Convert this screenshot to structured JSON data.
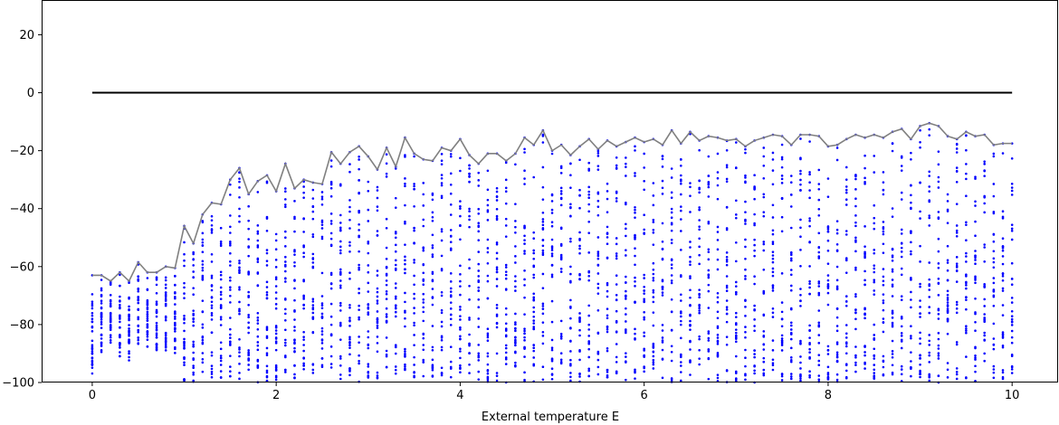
{
  "chart_data": {
    "type": "scatter",
    "title": "",
    "xlabel": "External temperature E",
    "ylabel": "",
    "xlim": [
      -0.55,
      10.5
    ],
    "ylim": [
      -100,
      32
    ],
    "xticks": [
      0,
      2,
      4,
      6,
      8,
      10
    ],
    "yticks": [
      -100,
      -80,
      -60,
      -40,
      -20,
      0,
      20
    ],
    "grid": false,
    "colors": {
      "points": "#0000ff",
      "max_line": "#808080",
      "zero_line": "#000000"
    },
    "zero_line": {
      "x": [
        0,
        10
      ],
      "y": 0
    },
    "max_line": {
      "x": [
        0.0,
        0.1,
        0.2,
        0.3,
        0.4,
        0.5,
        0.6,
        0.7,
        0.8,
        0.9,
        1.0,
        1.1,
        1.2,
        1.3,
        1.4,
        1.5,
        1.6,
        1.7,
        1.8,
        1.9,
        2.0,
        2.1,
        2.2,
        2.3,
        2.4,
        2.5,
        2.6,
        2.7,
        2.8,
        2.9,
        3.0,
        3.1,
        3.2,
        3.3,
        3.4,
        3.5,
        3.6,
        3.7,
        3.8,
        3.9,
        4.0,
        4.1,
        4.2,
        4.3,
        4.4,
        4.5,
        4.6,
        4.7,
        4.8,
        4.9,
        5.0,
        5.1,
        5.2,
        5.3,
        5.4,
        5.5,
        5.6,
        5.7,
        5.8,
        5.9,
        6.0,
        6.1,
        6.2,
        6.3,
        6.4,
        6.5,
        6.6,
        6.7,
        6.8,
        6.9,
        7.0,
        7.1,
        7.2,
        7.3,
        7.4,
        7.5,
        7.6,
        7.7,
        7.8,
        7.9,
        8.0,
        8.1,
        8.2,
        8.3,
        8.4,
        8.5,
        8.6,
        8.7,
        8.8,
        8.9,
        9.0,
        9.1,
        9.2,
        9.3,
        9.4,
        9.5,
        9.6,
        9.7,
        9.8,
        9.9,
        10.0
      ],
      "y": [
        -63,
        -63,
        -65,
        -62,
        -65,
        -58.5,
        -62,
        -62,
        -60,
        -60.5,
        -46,
        -52,
        -42,
        -38,
        -38.5,
        -30,
        -26,
        -35,
        -30.5,
        -28.5,
        -34,
        -24.5,
        -33,
        -30,
        -31,
        -31.5,
        -20.5,
        -24.5,
        -20.5,
        -18.5,
        -22,
        -26.5,
        -19,
        -25.5,
        -15.5,
        -21,
        -23,
        -23.5,
        -19,
        -20,
        -16,
        -21.5,
        -24.5,
        -21,
        -21,
        -23.5,
        -21,
        -15.5,
        -18,
        -13,
        -20,
        -18,
        -21.5,
        -18.5,
        -16,
        -19.5,
        -16.5,
        -18.5,
        -17,
        -15.5,
        -17,
        -16,
        -18,
        -13,
        -17.5,
        -13.5,
        -16.5,
        -15,
        -15.5,
        -16.5,
        -16,
        -18.5,
        -16.5,
        -15.5,
        -14.5,
        -15,
        -18,
        -14.5,
        -14.5,
        -15,
        -18.5,
        -18,
        -16,
        -14.5,
        -15.5,
        -14.5,
        -15.5,
        -13.5,
        -12.5,
        -16,
        -11.5,
        -10.5,
        -11.5,
        -15,
        -16,
        -13.5,
        -15,
        -14.5,
        -18,
        -17.5,
        -17.5
      ]
    },
    "scatter": {
      "n_samples_per_x": 30,
      "xs": [
        0.0,
        0.1,
        0.2,
        0.3,
        0.4,
        0.5,
        0.6,
        0.7,
        0.8,
        0.9,
        1.0,
        1.1,
        1.2,
        1.3,
        1.4,
        1.5,
        1.6,
        1.7,
        1.8,
        1.9,
        2.0,
        2.1,
        2.2,
        2.3,
        2.4,
        2.5,
        2.6,
        2.7,
        2.8,
        2.9,
        3.0,
        3.1,
        3.2,
        3.3,
        3.4,
        3.5,
        3.6,
        3.7,
        3.8,
        3.9,
        4.0,
        4.1,
        4.2,
        4.3,
        4.4,
        4.5,
        4.6,
        4.7,
        4.8,
        4.9,
        5.0,
        5.1,
        5.2,
        5.3,
        5.4,
        5.5,
        5.6,
        5.7,
        5.8,
        5.9,
        6.0,
        6.1,
        6.2,
        6.3,
        6.4,
        6.5,
        6.6,
        6.7,
        6.8,
        6.9,
        7.0,
        7.1,
        7.2,
        7.3,
        7.4,
        7.5,
        7.6,
        7.7,
        7.8,
        7.9,
        8.0,
        8.1,
        8.2,
        8.3,
        8.4,
        8.5,
        8.6,
        8.7,
        8.8,
        8.9,
        9.0,
        9.1,
        9.2,
        9.3,
        9.4,
        9.5,
        9.6,
        9.7,
        9.8,
        9.9,
        10.0
      ],
      "y_min": [
        -97,
        -90,
        -87,
        -91,
        -93,
        -87,
        -89,
        -89,
        -90,
        -90,
        -100,
        -100,
        -100,
        -100,
        -100,
        -100,
        -100,
        -100,
        -100,
        -100,
        -100,
        -100,
        -100,
        -100,
        -100,
        -100,
        -100,
        -100,
        -100,
        -100,
        -100,
        -100,
        -100,
        -100,
        -100,
        -100,
        -100,
        -100,
        -100,
        -100,
        -100,
        -100,
        -100,
        -100,
        -100,
        -100,
        -100,
        -100,
        -100,
        -100,
        -100,
        -100,
        -100,
        -100,
        -100,
        -100,
        -100,
        -100,
        -100,
        -100,
        -100,
        -100,
        -100,
        -100,
        -100,
        -100,
        -100,
        -100,
        -100,
        -100,
        -100,
        -100,
        -100,
        -100,
        -100,
        -100,
        -100,
        -100,
        -100,
        -100,
        -100,
        -100,
        -100,
        -100,
        -100,
        -100,
        -100,
        -100,
        -100,
        -100,
        -100,
        -100,
        -100,
        -100,
        -100,
        -100,
        -100,
        -100,
        -100,
        -100,
        -100
      ]
    }
  }
}
